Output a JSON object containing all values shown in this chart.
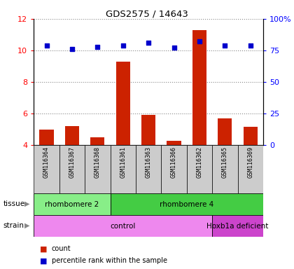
{
  "title": "GDS2575 / 14643",
  "samples": [
    "GSM116364",
    "GSM116367",
    "GSM116368",
    "GSM116361",
    "GSM116363",
    "GSM116366",
    "GSM116362",
    "GSM116365",
    "GSM116369"
  ],
  "counts": [
    5.0,
    5.2,
    4.5,
    9.3,
    5.9,
    4.3,
    11.3,
    5.7,
    5.15
  ],
  "percentile_ranks": [
    79,
    76,
    78,
    79,
    81,
    77,
    82,
    79,
    79
  ],
  "ylim_left": [
    4,
    12
  ],
  "yticks_left": [
    4,
    6,
    8,
    10,
    12
  ],
  "ylim_right": [
    0,
    100
  ],
  "yticks_right": [
    0,
    25,
    50,
    75,
    100
  ],
  "ytick_right_labels": [
    "0",
    "25",
    "50",
    "75",
    "100%"
  ],
  "bar_color": "#cc2200",
  "dot_color": "#0000cc",
  "grid_color": "#888888",
  "tissue_groups": [
    {
      "label": "rhombomere 2",
      "start": 0,
      "end": 3,
      "color": "#88ee88"
    },
    {
      "label": "rhombomere 4",
      "start": 3,
      "end": 9,
      "color": "#44cc44"
    }
  ],
  "strain_groups": [
    {
      "label": "control",
      "start": 0,
      "end": 7,
      "color": "#ee88ee"
    },
    {
      "label": "Hoxb1a deficient",
      "start": 7,
      "end": 9,
      "color": "#cc44cc"
    }
  ],
  "legend_items": [
    {
      "label": "count",
      "color": "#cc2200"
    },
    {
      "label": "percentile rank within the sample",
      "color": "#0000cc"
    }
  ],
  "bg_color": "#cccccc",
  "plot_bg": "#ffffff"
}
